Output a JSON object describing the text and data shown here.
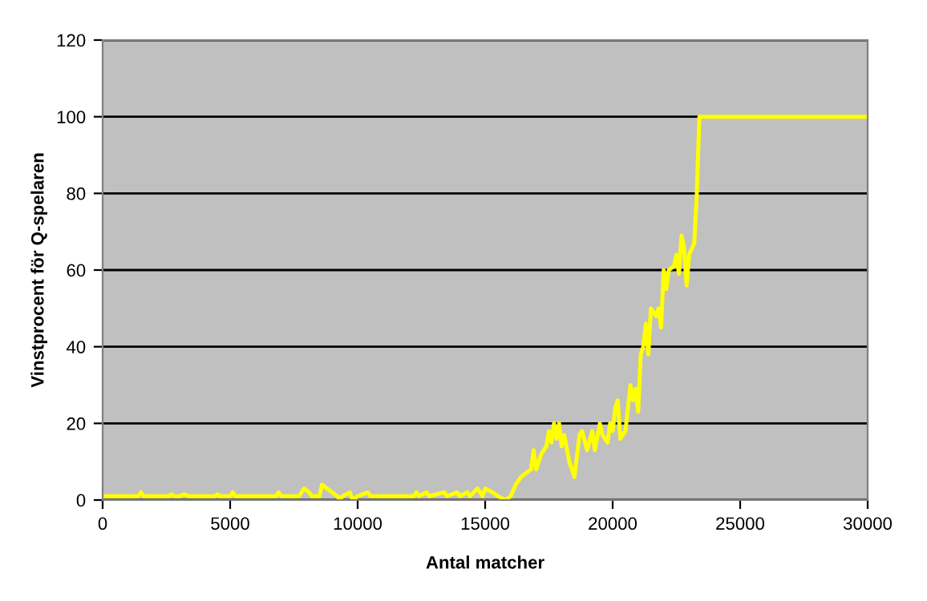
{
  "chart_data": {
    "type": "line",
    "xlabel": "Antal matcher",
    "ylabel": "Vinstprocent för Q-spelaren",
    "x": [
      0,
      1400,
      1500,
      1600,
      2600,
      2700,
      2800,
      3000,
      3200,
      3400,
      4400,
      4500,
      4600,
      5000,
      5100,
      5200,
      6800,
      6900,
      7000,
      7700,
      7900,
      8100,
      8200,
      8500,
      8600,
      8800,
      9000,
      9200,
      9300,
      9400,
      9700,
      9800,
      10000,
      10400,
      10500,
      12200,
      12300,
      12400,
      12700,
      12800,
      13400,
      13500,
      13900,
      14000,
      14300,
      14400,
      14700,
      14900,
      15000,
      15300,
      15500,
      15800,
      16000,
      16200,
      16400,
      16600,
      16800,
      16900,
      17000,
      17200,
      17400,
      17500,
      17600,
      17700,
      17800,
      17900,
      18000,
      18100,
      18300,
      18500,
      18700,
      18800,
      19000,
      19200,
      19300,
      19500,
      19600,
      19800,
      19900,
      20000,
      20100,
      20200,
      20300,
      20500,
      20600,
      20700,
      20800,
      20900,
      21000,
      21100,
      21200,
      21300,
      21400,
      21500,
      21700,
      21800,
      21900,
      22000,
      22100,
      22200,
      22400,
      22500,
      22600,
      22700,
      22800,
      22900,
      23000,
      23200,
      23300,
      23350,
      23400,
      30000
    ],
    "series": [
      {
        "color": "#ffff00",
        "values": [
          1,
          1,
          2,
          1,
          1,
          1.5,
          1,
          1,
          1.5,
          1,
          1,
          1.5,
          1,
          1,
          2,
          1,
          1,
          2,
          1,
          1,
          3,
          2,
          1,
          1,
          4,
          3,
          2,
          1,
          0,
          1,
          2,
          0,
          1,
          2,
          1,
          1,
          2,
          1,
          2,
          1,
          2,
          1,
          2,
          1,
          2,
          1,
          3,
          1,
          3,
          2,
          1,
          0,
          1,
          4,
          6,
          7,
          8,
          13,
          8,
          12,
          14,
          18,
          15,
          20,
          16,
          20,
          14,
          17,
          10,
          6,
          17,
          18,
          13,
          18,
          13,
          20,
          17,
          15,
          20,
          18,
          24,
          26,
          16,
          18,
          24,
          30,
          26,
          29,
          23,
          38,
          40,
          46,
          38,
          50,
          48,
          50,
          45,
          60,
          55,
          60,
          61,
          64,
          59,
          69,
          66,
          56,
          64,
          67,
          80,
          90,
          100,
          100
        ]
      }
    ],
    "xlim": [
      0,
      30000
    ],
    "xticks": [
      0,
      5000,
      10000,
      15000,
      20000,
      25000,
      30000
    ],
    "ylim": [
      0,
      120
    ],
    "yticks": [
      0,
      20,
      40,
      60,
      80,
      100,
      120
    ],
    "grid": "y"
  }
}
